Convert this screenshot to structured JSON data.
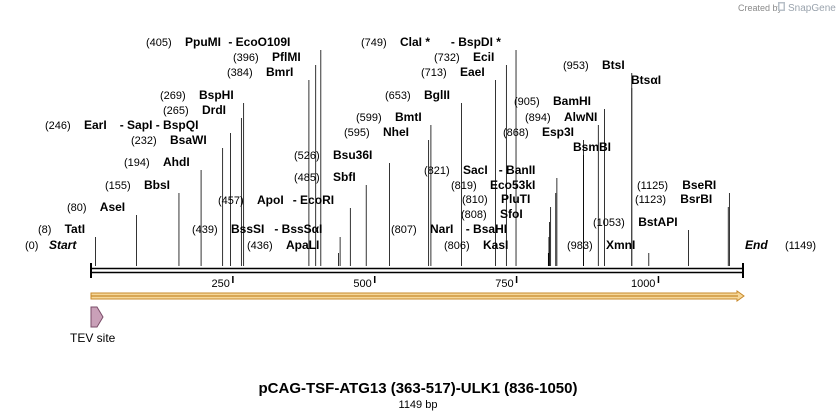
{
  "credit": {
    "prefix": "Created by",
    "brand": "SnapGene"
  },
  "map": {
    "name": "pCAG-TSF-ATG13 (363-517)-ULK1 (836-1050)",
    "length_label": "1149 bp",
    "length": 1149,
    "start": {
      "pos": "(0)",
      "label": "Start"
    },
    "end": {
      "pos": "(1149)",
      "label": "End"
    },
    "ticks": [
      {
        "value": 250,
        "label": "250"
      },
      {
        "value": 500,
        "label": "500"
      },
      {
        "value": 750,
        "label": "750"
      },
      {
        "value": 1000,
        "label": "1000"
      }
    ],
    "feature": {
      "label": "TEV site"
    }
  },
  "sites": [
    {
      "pos": "(405)",
      "name": "PpuMI",
      "extra": " - EcoO109I"
    },
    {
      "pos": "(396)",
      "name": "PflMI",
      "extra": ""
    },
    {
      "pos": "(384)",
      "name": "BmrI",
      "extra": ""
    },
    {
      "pos": "(269)",
      "name": "BspHI",
      "extra": ""
    },
    {
      "pos": "(265)",
      "name": "DrdI",
      "extra": ""
    },
    {
      "pos": "(246)",
      "name": "EarI",
      "extra": " - SapI - BspQI"
    },
    {
      "pos": "(232)",
      "name": "BsaWI",
      "extra": ""
    },
    {
      "pos": "(194)",
      "name": "AhdI",
      "extra": ""
    },
    {
      "pos": "(155)",
      "name": "BbsI",
      "extra": ""
    },
    {
      "pos": "(80)",
      "name": "AseI",
      "extra": ""
    },
    {
      "pos": "(8)",
      "name": "TatI",
      "extra": ""
    },
    {
      "pos": "(526)",
      "name": "Bsu36I",
      "extra": ""
    },
    {
      "pos": "(485)",
      "name": "SbfI",
      "extra": ""
    },
    {
      "pos": "(457)",
      "name": "ApoI",
      "extra": " - EcoRI"
    },
    {
      "pos": "(439)",
      "name": "BssSI",
      "extra": " - BssSαI"
    },
    {
      "pos": "(436)",
      "name": "ApaLI",
      "extra": ""
    },
    {
      "pos": "(749)",
      "name": "ClaI *",
      "extra": " - BspDI *"
    },
    {
      "pos": "(732)",
      "name": "EciI",
      "extra": ""
    },
    {
      "pos": "(713)",
      "name": "EaeI",
      "extra": ""
    },
    {
      "pos": "(653)",
      "name": "BglII",
      "extra": ""
    },
    {
      "pos": "(599)",
      "name": "BmtI",
      "extra": ""
    },
    {
      "pos": "(595)",
      "name": "NheI",
      "extra": ""
    },
    {
      "pos": "(821)",
      "name": "SacI",
      "extra": " - BanII"
    },
    {
      "pos": "(819)",
      "name": "Eco53kI",
      "extra": ""
    },
    {
      "pos": "(810)",
      "name": "PluTI",
      "extra": ""
    },
    {
      "pos": "(808)",
      "name": "SfoI",
      "extra": ""
    },
    {
      "pos": "(807)",
      "name": "NarI",
      "extra": " - BsaHI"
    },
    {
      "pos": "(806)",
      "name": "KasI",
      "extra": ""
    },
    {
      "pos": "(953)",
      "name": "BtsI",
      "extra": ""
    },
    {
      "pos": "",
      "name": "BtsαI",
      "extra": ""
    },
    {
      "pos": "(905)",
      "name": "BamHI",
      "extra": ""
    },
    {
      "pos": "(894)",
      "name": "AlwNI",
      "extra": ""
    },
    {
      "pos": "(868)",
      "name": "Esp3I",
      "extra": ""
    },
    {
      "pos": "",
      "name": "BsmBI",
      "extra": ""
    },
    {
      "pos": "(1125)",
      "name": "BseRI",
      "extra": ""
    },
    {
      "pos": "(1123)",
      "name": "BsrBI",
      "extra": ""
    },
    {
      "pos": "(1053)",
      "name": "BstAPI",
      "extra": ""
    },
    {
      "pos": "(983)",
      "name": "XmnI",
      "extra": ""
    }
  ],
  "colors": {
    "feature_arrow_fill": "#f5d79a",
    "feature_arrow_stroke": "#c8892a",
    "tev_fill": "#c9a0b8",
    "tev_stroke": "#7a4d68",
    "leader": "#000000"
  }
}
